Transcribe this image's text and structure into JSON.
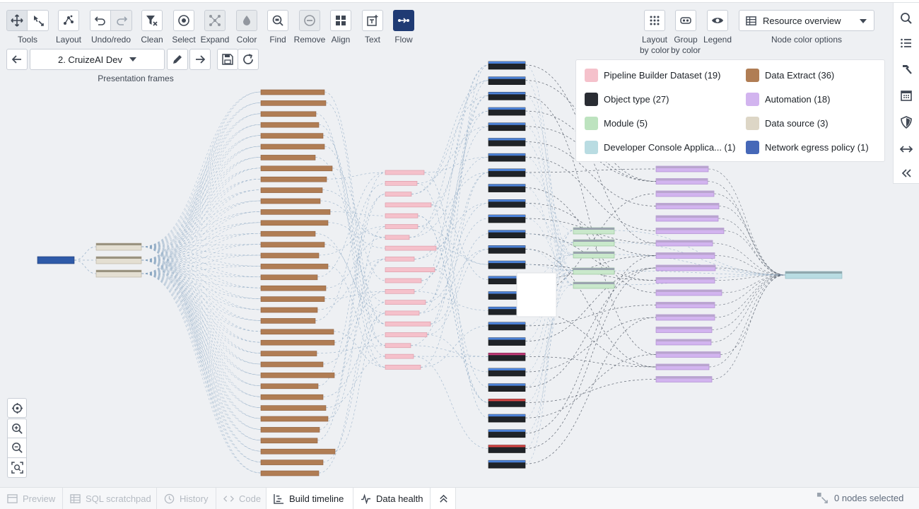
{
  "toolbar": {
    "tools_label": "Tools",
    "layout_label": "Layout",
    "undo_redo_label": "Undo/redo",
    "clean_label": "Clean",
    "select_label": "Select",
    "expand_label": "Expand",
    "color_label": "Color",
    "find_label": "Find",
    "remove_label": "Remove",
    "align_label": "Align",
    "text_label": "Text",
    "flow_label": "Flow"
  },
  "frames": {
    "selected": "2. CruizeAI Dev",
    "label": "Presentation frames"
  },
  "right_toolbar": {
    "layout_by_color": [
      "Layout",
      "by color"
    ],
    "group_by_color": [
      "Group",
      "by color"
    ],
    "legend_label": "Legend",
    "resource_select": "Resource overview",
    "node_color_options": "Node color options"
  },
  "legend": {
    "items": [
      {
        "label": "Pipeline Builder Dataset (19)",
        "color": "#f5c1cb"
      },
      {
        "label": "Data Extract (36)",
        "color": "#b07d54"
      },
      {
        "label": "Object type (27)",
        "color": "#2a2d33"
      },
      {
        "label": "Automation (18)",
        "color": "#d2b4ef"
      },
      {
        "label": "Module (5)",
        "color": "#bde3bf"
      },
      {
        "label": "Data source (3)",
        "color": "#ddd6c6"
      },
      {
        "label": "Developer Console Applica... (1)",
        "color": "#b9dce2"
      },
      {
        "label": "Network egress policy (1)",
        "color": "#4668b8"
      }
    ]
  },
  "bottom_tabs": [
    {
      "label": "Preview",
      "icon": "preview-icon",
      "state": "disabled"
    },
    {
      "label": "SQL scratchpad",
      "icon": "sql-icon",
      "state": "disabled"
    },
    {
      "label": "History",
      "icon": "history-icon",
      "state": "disabled"
    },
    {
      "label": "Code",
      "icon": "code-icon",
      "state": "disabled"
    },
    {
      "label": "Build timeline",
      "icon": "timeline-icon",
      "state": "enabled"
    },
    {
      "label": "Data health",
      "icon": "pulse-icon",
      "state": "enabled"
    }
  ],
  "status": {
    "nodes_selected": "0 nodes selected"
  },
  "sidebar_icons": [
    "search-icon",
    "list-icon",
    "hammer-icon",
    "calendar-icon",
    "shield-icon",
    "arrows-horizontal-icon",
    "collapse-icon"
  ],
  "colors": {
    "accent": "#1f3b74",
    "edge": "#8aa6c2"
  }
}
